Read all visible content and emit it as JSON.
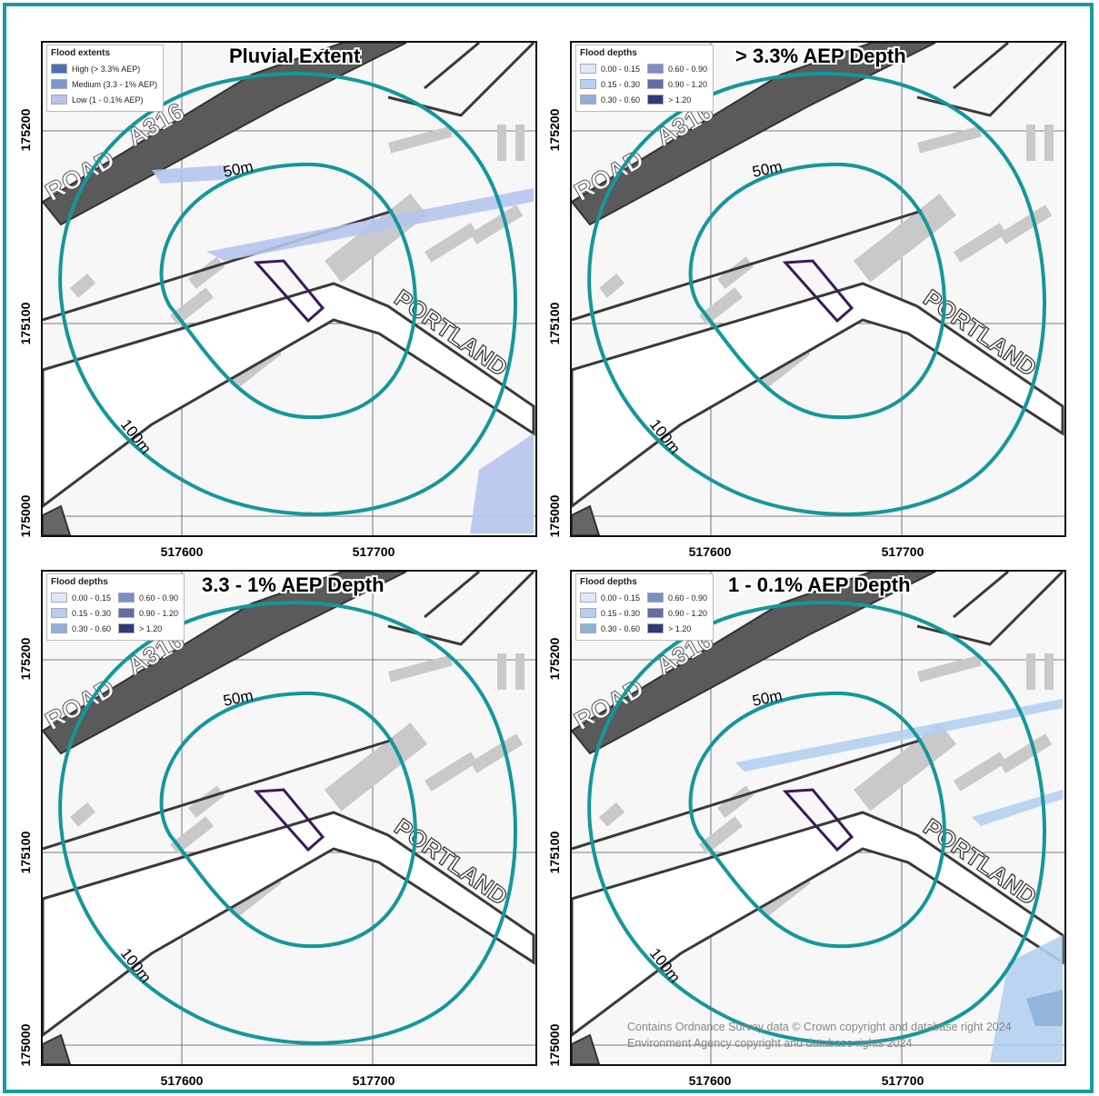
{
  "panels": [
    {
      "title": "Pluvial Extent",
      "legend": {
        "title": "Flood extents",
        "items": [
          {
            "label": "High (> 3.3% AEP)",
            "color": "#4a6fb5"
          },
          {
            "label": "Medium (3.3 - 1% AEP)",
            "color": "#7d95d2"
          },
          {
            "label": "Low (1 - 0.1% AEP)",
            "color": "#b6c4ee"
          }
        ]
      }
    },
    {
      "title": "> 3.3% AEP Depth",
      "legend": {
        "title": "Flood depths",
        "items": [
          {
            "label": "0.00 - 0.15",
            "color": "#dce9fb"
          },
          {
            "label": "0.15 - 0.30",
            "color": "#b4cff0"
          },
          {
            "label": "0.30 - 0.60",
            "color": "#8fb0d8"
          },
          {
            "label": "0.60 - 0.90",
            "color": "#7a8ec9"
          },
          {
            "label": "0.90 - 1.20",
            "color": "#5f6ea8"
          },
          {
            "label": "> 1.20",
            "color": "#2f3a7a"
          }
        ]
      }
    },
    {
      "title": "3.3 - 1% AEP Depth",
      "legend": {
        "title": "Flood depths",
        "items": [
          {
            "label": "0.00 - 0.15",
            "color": "#dce9fb"
          },
          {
            "label": "0.15 - 0.30",
            "color": "#b4cff0"
          },
          {
            "label": "0.30 - 0.60",
            "color": "#8fb0d8"
          },
          {
            "label": "0.60 - 0.90",
            "color": "#7a8ec9"
          },
          {
            "label": "0.90 - 1.20",
            "color": "#5f6ea8"
          },
          {
            "label": "> 1.20",
            "color": "#2f3a7a"
          }
        ]
      }
    },
    {
      "title": "1 - 0.1% AEP Depth",
      "legend": {
        "title": "Flood depths",
        "items": [
          {
            "label": "0.00 - 0.15",
            "color": "#dce9fb"
          },
          {
            "label": "0.15 - 0.30",
            "color": "#b4cff0"
          },
          {
            "label": "0.30 - 0.60",
            "color": "#8fb0d8"
          },
          {
            "label": "0.60 - 0.90",
            "color": "#7a8ec9"
          },
          {
            "label": "0.90 - 1.20",
            "color": "#5f6ea8"
          },
          {
            "label": "> 1.20",
            "color": "#2f3a7a"
          }
        ]
      }
    }
  ],
  "map": {
    "road_labels": [
      "ROAD",
      "A316",
      "PORTLAND"
    ],
    "buffer_labels": [
      "50m",
      "100m"
    ],
    "buffer_color": "#14979c",
    "site_color": "#3b1a5c",
    "y_ticks": [
      "175200",
      "175100",
      "175000"
    ],
    "x_ticks": [
      "517600",
      "517700"
    ]
  },
  "copyright": [
    "Contains Ordnance Survey data © Crown copyright and database right 2024",
    "Environment Agency copyright and database rights 2024"
  ]
}
